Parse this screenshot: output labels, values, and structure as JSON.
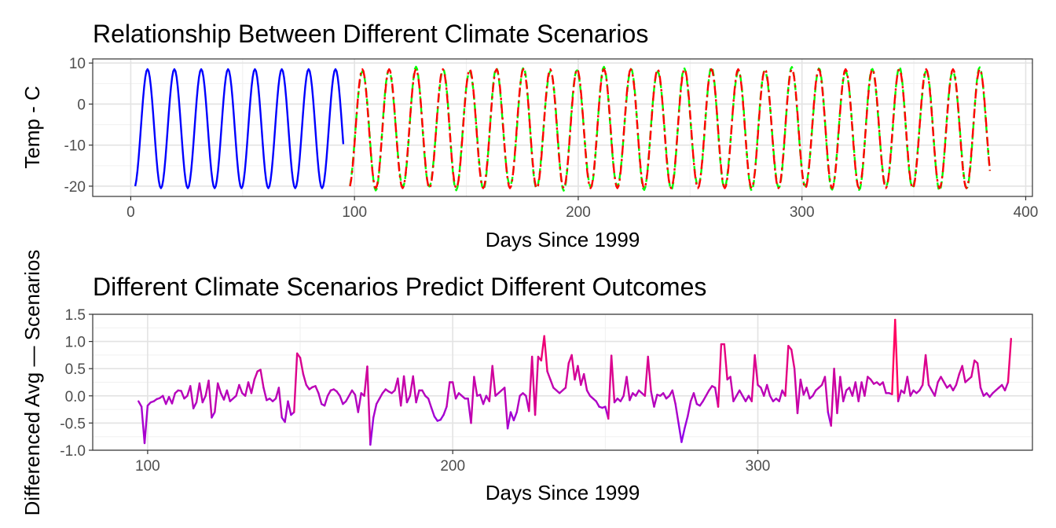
{
  "chart_data": [
    {
      "type": "line",
      "title": "Relationship Between Different Climate Scenarios",
      "xlabel": "Days Since 1999",
      "ylabel": "Temp - C",
      "xlim": [
        -17,
        403
      ],
      "ylim": [
        -22.5,
        11
      ],
      "xticks": [
        0,
        100,
        200,
        300,
        400
      ],
      "yticks": [
        10,
        0,
        -10,
        -20
      ],
      "grid": true,
      "legend": "none",
      "series_model": {
        "type": "sinusoid",
        "period_days": 12,
        "mean": -6,
        "amplitude": 14.5,
        "peak_day": 7.5
      },
      "series": [
        {
          "color": "#0000ff",
          "style": "solid",
          "x_range": [
            2,
            95
          ]
        },
        {
          "color": "#00ff00",
          "style": "dashed",
          "x_range": [
            98,
            384
          ]
        },
        {
          "color": "#ff0000",
          "style": "dashdot",
          "x_range": [
            98,
            384
          ]
        }
      ]
    },
    {
      "type": "line",
      "title": "Different Climate Scenarios Predict Different Outcomes",
      "xlabel": "Days Since 1999",
      "ylabel": "Differenced Avg — Scenarios",
      "xlim": [
        82,
        390
      ],
      "ylim": [
        -1.0,
        1.5
      ],
      "xticks": [
        100,
        200,
        300
      ],
      "yticks": [
        1.5,
        1.0,
        0.5,
        0.0,
        -0.5,
        -1.0
      ],
      "ytick_labels": [
        "1.5",
        "1.0",
        "0.5",
        "0.0",
        "-0.5",
        "-1.0"
      ],
      "grid": true,
      "legend": "none",
      "color_scale": {
        "low": "#8000ff",
        "high": "#ff0060",
        "low_value": -0.9,
        "high_value": 1.4
      },
      "points": [
        [
          97,
          -0.1
        ],
        [
          98,
          -0.2
        ],
        [
          99,
          -0.87
        ],
        [
          100,
          -0.18
        ],
        [
          101,
          -0.12
        ],
        [
          102,
          -0.1
        ],
        [
          103,
          -0.06
        ],
        [
          104,
          -0.04
        ],
        [
          105,
          0.0
        ],
        [
          106,
          -0.15
        ],
        [
          107,
          -0.02
        ],
        [
          108,
          -0.14
        ],
        [
          109,
          0.05
        ],
        [
          110,
          0.1
        ],
        [
          111,
          0.09
        ],
        [
          112,
          -0.05
        ],
        [
          113,
          0.0
        ],
        [
          114,
          0.18
        ],
        [
          115,
          -0.23
        ],
        [
          116,
          -0.12
        ],
        [
          117,
          0.23
        ],
        [
          118,
          -0.12
        ],
        [
          119,
          0.0
        ],
        [
          120,
          0.28
        ],
        [
          121,
          -0.4
        ],
        [
          122,
          -0.3
        ],
        [
          123,
          0.23
        ],
        [
          124,
          0.05
        ],
        [
          125,
          -0.07
        ],
        [
          126,
          0.1
        ],
        [
          127,
          -0.1
        ],
        [
          128,
          -0.05
        ],
        [
          129,
          0.0
        ],
        [
          130,
          0.2
        ],
        [
          131,
          0.05
        ],
        [
          132,
          0.0
        ],
        [
          133,
          0.25
        ],
        [
          134,
          0.05
        ],
        [
          135,
          0.3
        ],
        [
          136,
          0.45
        ],
        [
          137,
          0.48
        ],
        [
          138,
          0.15
        ],
        [
          139,
          -0.08
        ],
        [
          140,
          -0.05
        ],
        [
          141,
          -0.1
        ],
        [
          142,
          -0.05
        ],
        [
          143,
          0.15
        ],
        [
          144,
          -0.4
        ],
        [
          145,
          -0.48
        ],
        [
          146,
          -0.1
        ],
        [
          147,
          -0.35
        ],
        [
          148,
          -0.3
        ],
        [
          149,
          0.78
        ],
        [
          150,
          0.7
        ],
        [
          151,
          0.4
        ],
        [
          152,
          0.2
        ],
        [
          153,
          0.12
        ],
        [
          154,
          0.16
        ],
        [
          155,
          0.18
        ],
        [
          156,
          0.05
        ],
        [
          157,
          -0.15
        ],
        [
          158,
          -0.18
        ],
        [
          159,
          0.0
        ],
        [
          160,
          0.1
        ],
        [
          161,
          0.12
        ],
        [
          162,
          0.08
        ],
        [
          163,
          0.0
        ],
        [
          164,
          -0.15
        ],
        [
          165,
          -0.1
        ],
        [
          166,
          0.0
        ],
        [
          167,
          0.1
        ],
        [
          168,
          0.02
        ],
        [
          169,
          -0.3
        ],
        [
          170,
          0.05
        ],
        [
          171,
          0.0
        ],
        [
          172,
          0.54
        ],
        [
          173,
          -0.9
        ],
        [
          174,
          -0.4
        ],
        [
          175,
          -0.15
        ],
        [
          176,
          -0.05
        ],
        [
          177,
          0.05
        ],
        [
          178,
          0.12
        ],
        [
          179,
          0.08
        ],
        [
          180,
          0.05
        ],
        [
          181,
          0.1
        ],
        [
          182,
          0.32
        ],
        [
          183,
          -0.18
        ],
        [
          184,
          0.36
        ],
        [
          185,
          -0.12
        ],
        [
          186,
          0.0
        ],
        [
          187,
          0.36
        ],
        [
          188,
          -0.12
        ],
        [
          189,
          0.1
        ],
        [
          190,
          0.1
        ],
        [
          191,
          0.0
        ],
        [
          192,
          -0.05
        ],
        [
          193,
          -0.22
        ],
        [
          194,
          -0.38
        ],
        [
          195,
          -0.46
        ],
        [
          196,
          -0.44
        ],
        [
          197,
          -0.35
        ],
        [
          198,
          -0.2
        ],
        [
          199,
          0.25
        ],
        [
          200,
          0.25
        ],
        [
          201,
          -0.05
        ],
        [
          202,
          0.05
        ],
        [
          203,
          0.0
        ],
        [
          204,
          -0.05
        ],
        [
          205,
          -0.05
        ],
        [
          206,
          -0.5
        ],
        [
          207,
          0.35
        ],
        [
          208,
          0.0
        ],
        [
          209,
          0.02
        ],
        [
          210,
          -0.15
        ],
        [
          211,
          0.0
        ],
        [
          212,
          -0.1
        ],
        [
          213,
          0.55
        ],
        [
          214,
          0.0
        ],
        [
          215,
          0.05
        ],
        [
          216,
          0.1
        ],
        [
          217,
          0.15
        ],
        [
          218,
          -0.6
        ],
        [
          219,
          -0.3
        ],
        [
          220,
          -0.45
        ],
        [
          221,
          -0.3
        ],
        [
          222,
          0.0
        ],
        [
          223,
          0.05
        ],
        [
          224,
          0.0
        ],
        [
          225,
          -0.28
        ],
        [
          226,
          0.72
        ],
        [
          227,
          -0.35
        ],
        [
          228,
          0.72
        ],
        [
          229,
          0.65
        ],
        [
          230,
          1.1
        ],
        [
          231,
          0.45
        ],
        [
          232,
          0.3
        ],
        [
          233,
          0.15
        ],
        [
          234,
          0.1
        ],
        [
          235,
          0.05
        ],
        [
          236,
          0.1
        ],
        [
          237,
          0.15
        ],
        [
          238,
          0.6
        ],
        [
          239,
          0.75
        ],
        [
          240,
          0.3
        ],
        [
          241,
          0.55
        ],
        [
          242,
          0.2
        ],
        [
          243,
          0.4
        ],
        [
          244,
          0.1
        ],
        [
          245,
          0.0
        ],
        [
          246,
          -0.05
        ],
        [
          247,
          -0.1
        ],
        [
          248,
          -0.2
        ],
        [
          249,
          -0.22
        ],
        [
          250,
          -0.2
        ],
        [
          251,
          -0.42
        ],
        [
          252,
          0.74
        ],
        [
          253,
          -0.12
        ],
        [
          254,
          -0.05
        ],
        [
          255,
          -0.1
        ],
        [
          256,
          0.0
        ],
        [
          257,
          0.35
        ],
        [
          258,
          -0.08
        ],
        [
          259,
          0.05
        ],
        [
          260,
          0.0
        ],
        [
          261,
          0.1
        ],
        [
          262,
          0.05
        ],
        [
          263,
          0.0
        ],
        [
          264,
          0.72
        ],
        [
          265,
          0.08
        ],
        [
          266,
          -0.2
        ],
        [
          267,
          0.02
        ],
        [
          268,
          0.0
        ],
        [
          269,
          0.05
        ],
        [
          270,
          -0.05
        ],
        [
          271,
          0.0
        ],
        [
          272,
          0.1
        ],
        [
          273,
          -0.15
        ],
        [
          274,
          -0.5
        ],
        [
          275,
          -0.85
        ],
        [
          276,
          -0.6
        ],
        [
          277,
          -0.38
        ],
        [
          278,
          -0.1
        ],
        [
          279,
          0.05
        ],
        [
          280,
          -0.15
        ],
        [
          281,
          -0.18
        ],
        [
          282,
          -0.1
        ],
        [
          283,
          0.0
        ],
        [
          284,
          0.1
        ],
        [
          285,
          0.18
        ],
        [
          286,
          0.15
        ],
        [
          287,
          -0.2
        ],
        [
          288,
          0.95
        ],
        [
          289,
          0.95
        ],
        [
          290,
          0.3
        ],
        [
          291,
          0.35
        ],
        [
          292,
          -0.1
        ],
        [
          293,
          0.0
        ],
        [
          294,
          0.1
        ],
        [
          295,
          0.0
        ],
        [
          296,
          -0.1
        ],
        [
          297,
          0.0
        ],
        [
          298,
          -0.1
        ],
        [
          299,
          0.75
        ],
        [
          300,
          0.2
        ],
        [
          301,
          0.15
        ],
        [
          302,
          0.0
        ],
        [
          303,
          0.2
        ],
        [
          304,
          0.0
        ],
        [
          305,
          -0.1
        ],
        [
          306,
          -0.05
        ],
        [
          307,
          -0.1
        ],
        [
          308,
          0.1
        ],
        [
          309,
          0.0
        ],
        [
          310,
          0.92
        ],
        [
          311,
          0.85
        ],
        [
          312,
          0.5
        ],
        [
          313,
          -0.32
        ],
        [
          314,
          0.3
        ],
        [
          315,
          0.02
        ],
        [
          316,
          0.15
        ],
        [
          317,
          -0.05
        ],
        [
          318,
          0.0
        ],
        [
          319,
          0.1
        ],
        [
          320,
          0.15
        ],
        [
          321,
          0.2
        ],
        [
          322,
          0.35
        ],
        [
          323,
          -0.3
        ],
        [
          324,
          -0.55
        ],
        [
          325,
          0.5
        ],
        [
          326,
          -0.32
        ],
        [
          327,
          0.35
        ],
        [
          328,
          -0.1
        ],
        [
          329,
          0.1
        ],
        [
          330,
          0.15
        ],
        [
          331,
          0.0
        ],
        [
          332,
          0.25
        ],
        [
          333,
          -0.1
        ],
        [
          334,
          0.25
        ],
        [
          335,
          0.0
        ],
        [
          336,
          0.35
        ],
        [
          337,
          0.3
        ],
        [
          338,
          0.22
        ],
        [
          339,
          0.25
        ],
        [
          340,
          0.2
        ],
        [
          341,
          0.25
        ],
        [
          342,
          0.05
        ],
        [
          343,
          0.05
        ],
        [
          344,
          0.03
        ],
        [
          345,
          1.4
        ],
        [
          346,
          -0.1
        ],
        [
          347,
          0.1
        ],
        [
          348,
          0.05
        ],
        [
          349,
          0.35
        ],
        [
          350,
          0.0
        ],
        [
          351,
          0.1
        ],
        [
          352,
          0.05
        ],
        [
          353,
          0.1
        ],
        [
          354,
          0.2
        ],
        [
          355,
          0.75
        ],
        [
          356,
          0.2
        ],
        [
          357,
          0.1
        ],
        [
          358,
          0.0
        ],
        [
          359,
          0.25
        ],
        [
          360,
          0.35
        ],
        [
          361,
          0.25
        ],
        [
          362,
          0.15
        ],
        [
          363,
          0.2
        ],
        [
          364,
          0.1
        ],
        [
          365,
          0.2
        ],
        [
          366,
          0.4
        ],
        [
          367,
          0.55
        ],
        [
          368,
          0.25
        ],
        [
          369,
          0.3
        ],
        [
          370,
          0.35
        ],
        [
          371,
          0.65
        ],
        [
          372,
          0.6
        ],
        [
          373,
          0.15
        ],
        [
          374,
          0.0
        ],
        [
          375,
          0.05
        ],
        [
          376,
          -0.02
        ],
        [
          377,
          0.05
        ],
        [
          378,
          0.1
        ],
        [
          379,
          0.15
        ],
        [
          380,
          0.2
        ],
        [
          381,
          0.1
        ],
        [
          382,
          0.25
        ],
        [
          383,
          1.05
        ]
      ]
    }
  ]
}
